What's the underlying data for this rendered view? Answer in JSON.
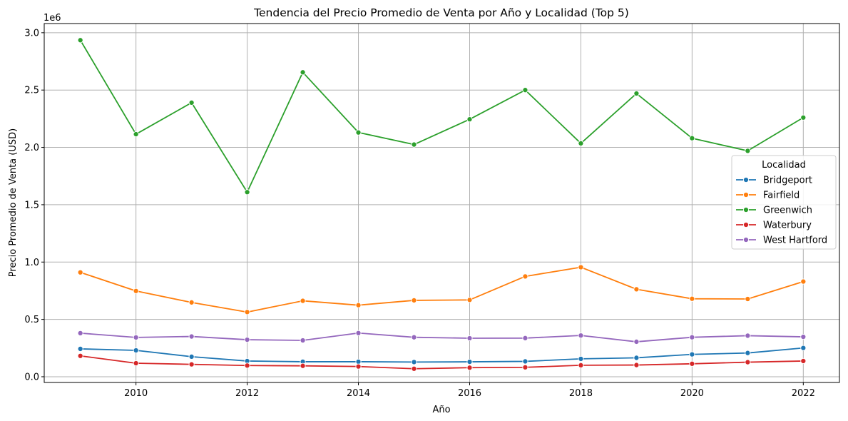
{
  "chart_data": {
    "type": "line",
    "title": "Tendencia del Precio Promedio de Venta por Año y Localidad (Top 5)",
    "xlabel": "Año",
    "ylabel": "Precio Promedio de Venta (USD)",
    "y_offset_label": "1e6",
    "xlim": [
      2008.35,
      2022.65
    ],
    "ylim": [
      -50000,
      3080000
    ],
    "x_ticks": [
      2010,
      2012,
      2014,
      2016,
      2018,
      2020,
      2022
    ],
    "y_ticks": [
      0,
      500000,
      1000000,
      1500000,
      2000000,
      2500000,
      3000000
    ],
    "y_tick_labels": [
      "0.0",
      "0.5",
      "1.0",
      "1.5",
      "2.0",
      "2.5",
      "3.0"
    ],
    "grid": true,
    "legend": {
      "title": "Localidad",
      "placement": "center-right"
    },
    "x": [
      2009,
      2010,
      2011,
      2012,
      2013,
      2014,
      2015,
      2016,
      2017,
      2018,
      2019,
      2020,
      2021,
      2022
    ],
    "series": [
      {
        "name": "Bridgeport",
        "color": "#1f77b4",
        "values": [
          243000,
          230000,
          175000,
          137000,
          131000,
          131000,
          128000,
          130000,
          134000,
          156000,
          165000,
          195000,
          207000,
          251000
        ]
      },
      {
        "name": "Fairfield",
        "color": "#ff7f0e",
        "values": [
          910000,
          748000,
          648000,
          564000,
          662000,
          624000,
          666000,
          670000,
          875000,
          955000,
          763000,
          680000,
          678000,
          830000
        ]
      },
      {
        "name": "Greenwich",
        "color": "#2ca02c",
        "values": [
          2935000,
          2115000,
          2390000,
          1610000,
          2655000,
          2130000,
          2025000,
          2245000,
          2500000,
          2035000,
          2470000,
          2080000,
          1970000,
          2260000
        ]
      },
      {
        "name": "Waterbury",
        "color": "#d62728",
        "values": [
          182000,
          118000,
          108000,
          98000,
          95000,
          89000,
          70000,
          79000,
          82000,
          100000,
          102000,
          113000,
          127000,
          137000
        ]
      },
      {
        "name": "West Hartford",
        "color": "#9467bd",
        "values": [
          380000,
          343000,
          351000,
          323000,
          317000,
          381000,
          344000,
          336000,
          337000,
          360000,
          305000,
          344000,
          358000,
          348000
        ]
      }
    ]
  }
}
